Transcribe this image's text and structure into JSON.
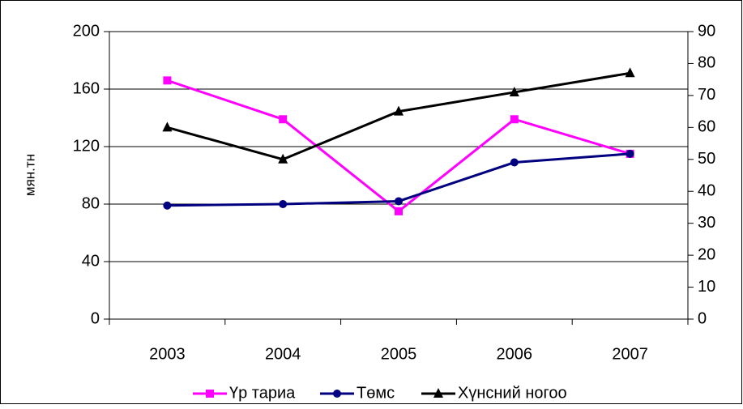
{
  "chart_data": {
    "type": "line",
    "ylabel": "мян.тн",
    "categories": [
      "2003",
      "2004",
      "2005",
      "2006",
      "2007"
    ],
    "series": [
      {
        "name": "Үр тариа",
        "color": "#ff00ff",
        "marker": "square",
        "values": [
          166,
          139,
          75,
          139,
          115
        ]
      },
      {
        "name": "Төмс",
        "color": "#000080",
        "marker": "circle",
        "values": [
          79,
          80,
          82,
          109,
          115
        ]
      },
      {
        "name": "Хүнсний ногоо",
        "color": "#000000",
        "marker": "triangle",
        "axis": "y2",
        "values": [
          60,
          50,
          65,
          71,
          77
        ]
      }
    ],
    "ylim": [
      0,
      200
    ],
    "yticks": [
      0,
      40,
      80,
      120,
      160,
      200
    ],
    "y2lim": [
      0,
      90
    ],
    "y2ticks": [
      0,
      10,
      20,
      30,
      40,
      50,
      60,
      70,
      80,
      90
    ],
    "grid": true,
    "legend": "bottom"
  }
}
